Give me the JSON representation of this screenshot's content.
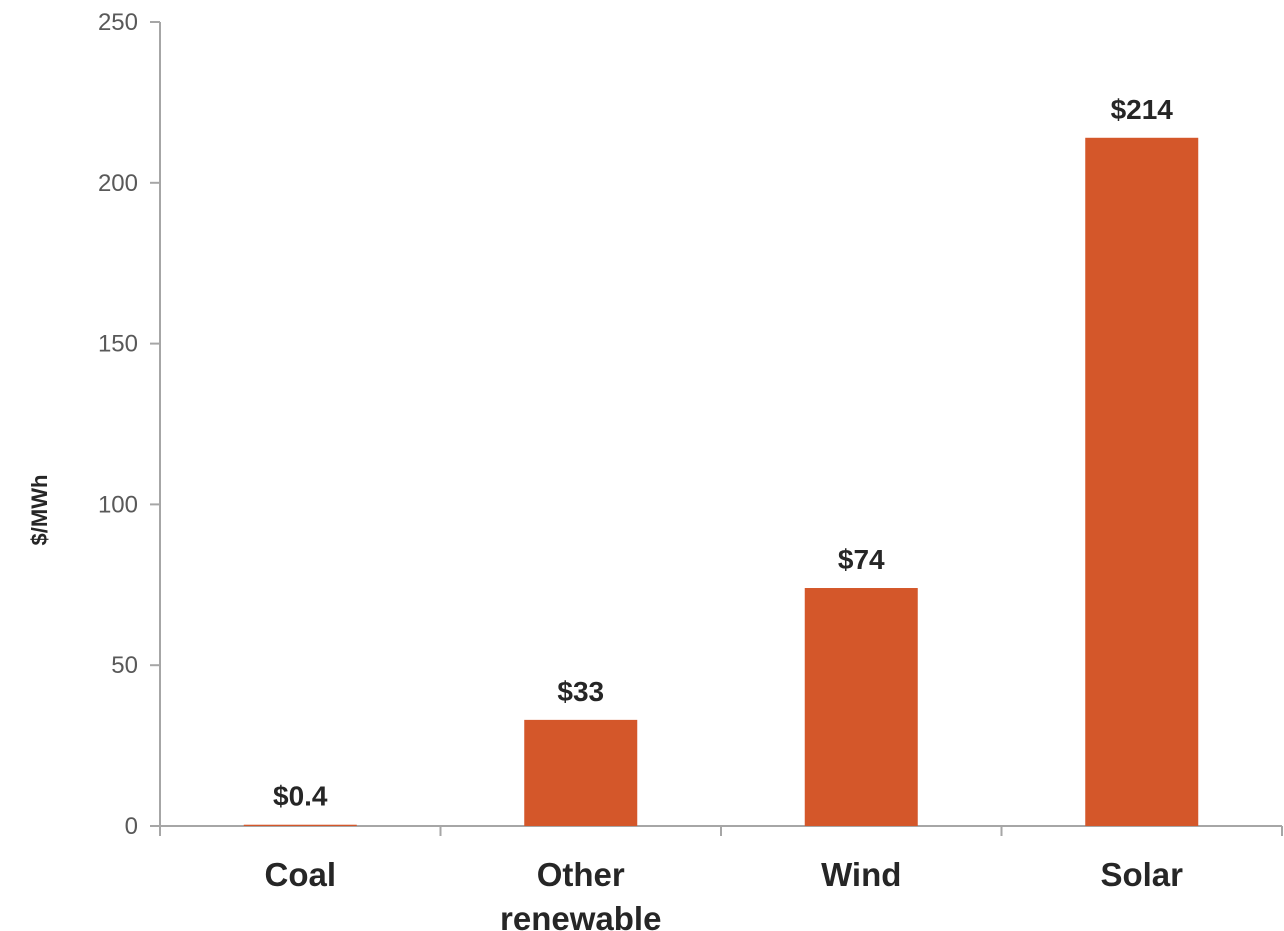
{
  "chart_data": {
    "type": "bar",
    "categories": [
      "Coal",
      "Other renewable",
      "Wind",
      "Solar"
    ],
    "category_lines": [
      [
        "Coal"
      ],
      [
        "Other",
        "renewable"
      ],
      [
        "Wind"
      ],
      [
        "Solar"
      ]
    ],
    "values": [
      0.4,
      33,
      74,
      214
    ],
    "data_labels": [
      "$0.4",
      "$33",
      "$74",
      "$214"
    ],
    "title": "",
    "xlabel": "",
    "ylabel": "$/MWh",
    "ylim": [
      0,
      250
    ],
    "yticks": [
      0,
      50,
      100,
      150,
      200,
      250
    ],
    "grid": false,
    "legend": "none",
    "bar_color": "#D4572A"
  }
}
